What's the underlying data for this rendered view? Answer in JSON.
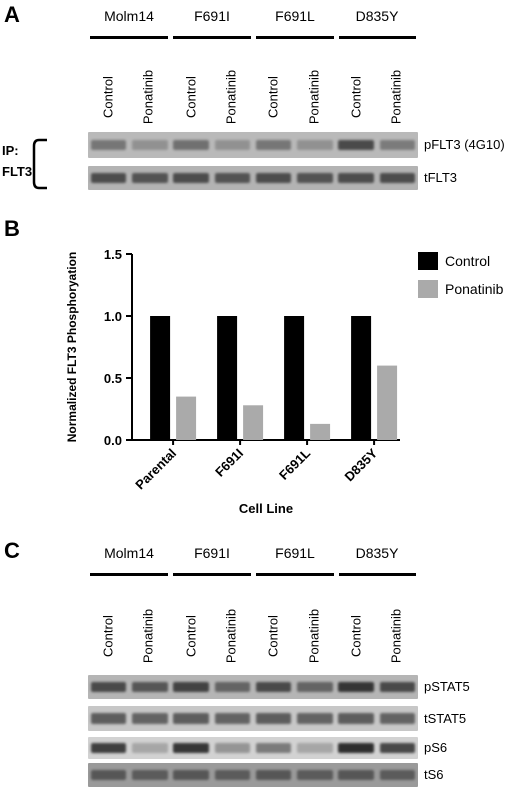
{
  "panel_a": {
    "letter": "A",
    "groups": [
      "Molm14",
      "F691I",
      "F691L",
      "D835Y"
    ],
    "lanes": [
      "Control",
      "Ponatinib",
      "Control",
      "Ponatinib",
      "Control",
      "Ponatinib",
      "Control",
      "Ponatinib"
    ],
    "ip_label_line1": "IP:",
    "ip_label_line2": "FLT3",
    "blots": [
      {
        "label": "pFLT3 (4G10)",
        "bg": "#b9b9b9",
        "band_color": "#4a4a4a",
        "intensities": [
          0.6,
          0.35,
          0.65,
          0.35,
          0.6,
          0.35,
          1.0,
          0.55
        ]
      },
      {
        "label": "tFLT3",
        "bg": "#b3b3b3",
        "band_color": "#333333",
        "intensities": [
          0.8,
          0.75,
          0.8,
          0.75,
          0.8,
          0.75,
          0.8,
          0.8
        ]
      }
    ]
  },
  "panel_b": {
    "letter": "B",
    "chart_data": {
      "type": "bar",
      "categories": [
        "Parental",
        "F691I",
        "F691L",
        "D835Y"
      ],
      "series": [
        {
          "name": "Control",
          "values": [
            1.0,
            1.0,
            1.0,
            1.0
          ],
          "color": "#000000"
        },
        {
          "name": "Ponatinib",
          "values": [
            0.35,
            0.28,
            0.13,
            0.6
          ],
          "color": "#aaaaaa"
        }
      ],
      "xlabel": "Cell Line",
      "ylabel": "Normalized FLT3 Phosphoryation",
      "ylim": [
        0,
        1.5
      ],
      "yticks": [
        "0.0",
        "0.5",
        "1.0",
        "1.5"
      ],
      "grid": false,
      "legend_position": "top-right"
    }
  },
  "panel_c": {
    "letter": "C",
    "groups": [
      "Molm14",
      "F691I",
      "F691L",
      "D835Y"
    ],
    "lanes": [
      "Control",
      "Ponatinib",
      "Control",
      "Ponatinib",
      "Control",
      "Ponatinib",
      "Control",
      "Ponatinib"
    ],
    "blots": [
      {
        "label": "pSTAT5",
        "bg": "#b5b5b5",
        "band_color": "#2f2f2f",
        "intensities": [
          0.8,
          0.7,
          0.85,
          0.6,
          0.8,
          0.6,
          0.95,
          0.8
        ]
      },
      {
        "label": "tSTAT5",
        "bg": "#c7c7c7",
        "band_color": "#3a3a3a",
        "intensities": [
          0.75,
          0.7,
          0.75,
          0.7,
          0.75,
          0.7,
          0.75,
          0.7
        ]
      },
      {
        "label": "pS6",
        "bg": "#d2d2d2",
        "band_color": "#262626",
        "intensities": [
          0.85,
          0.25,
          0.9,
          0.35,
          0.5,
          0.25,
          0.95,
          0.8
        ]
      },
      {
        "label": "tS6",
        "bg": "#9a9a9a",
        "band_color": "#3a3a3a",
        "intensities": [
          0.7,
          0.65,
          0.7,
          0.65,
          0.7,
          0.65,
          0.7,
          0.65
        ]
      }
    ]
  }
}
